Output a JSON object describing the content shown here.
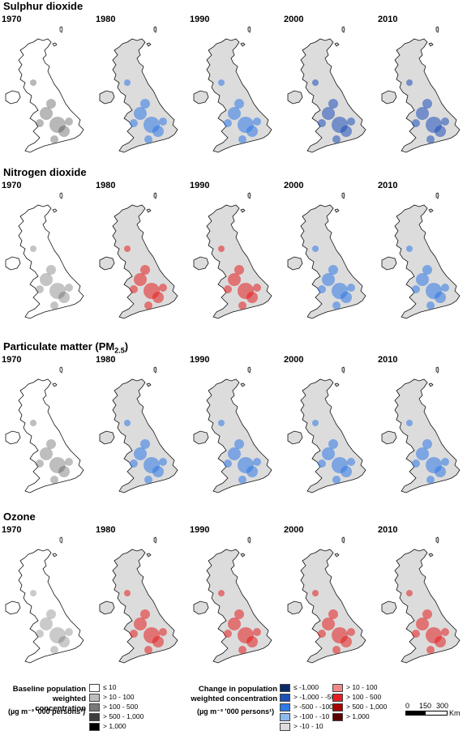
{
  "sections": [
    {
      "title": "Sulphur dioxide",
      "years": [
        "1970",
        "1980",
        "1990",
        "2000",
        "2010"
      ],
      "pollutant": "so2"
    },
    {
      "title": "Nitrogen dioxide",
      "years": [
        "1970",
        "1980",
        "1990",
        "2000",
        "2010"
      ],
      "pollutant": "no2"
    },
    {
      "title_prefix": "Particulate matter (PM",
      "title_sub": "2.5",
      "title_suffix": ")",
      "years": [
        "1970",
        "1980",
        "1990",
        "2000",
        "2010"
      ],
      "pollutant": "pm25"
    },
    {
      "title": "Ozone",
      "years": [
        "1970",
        "1980",
        "1990",
        "2000",
        "2010"
      ],
      "pollutant": "o3"
    }
  ],
  "legend_baseline": {
    "title": "Baseline population weighted concentration",
    "unit": "(µg m⁻³ '000 persons¹)",
    "items": [
      {
        "label": "≤ 10",
        "color": "#ffffff"
      },
      {
        "label": "> 10 - 100",
        "color": "#bdbdbd"
      },
      {
        "label": "> 100 - 500",
        "color": "#7a7a7a"
      },
      {
        "label": "> 500 - 1,000",
        "color": "#3d3d3d"
      },
      {
        "label": "> 1,000",
        "color": "#000000"
      }
    ]
  },
  "legend_change": {
    "title": "Change in population weighted concentration",
    "unit": "(µg m⁻³ '000 persons¹)",
    "negative_items": [
      {
        "label": "≤ -1,000",
        "color": "#0b2a6b"
      },
      {
        "label": "> -1,000 - -500",
        "color": "#1d4fb8"
      },
      {
        "label": "> -500 - -100",
        "color": "#2f79e6"
      },
      {
        "label": "> -100 - -10",
        "color": "#8db9ef"
      },
      {
        "label": "> -10 - 10",
        "color": "#dcdcdc"
      }
    ],
    "positive_items": [
      {
        "label": "> 10 - 100",
        "color": "#f08a8a"
      },
      {
        "label": "> 100 - 500",
        "color": "#e41f1f"
      },
      {
        "label": "> 500 - 1,000",
        "color": "#a80000"
      },
      {
        "label": "> 1,000",
        "color": "#5c0000"
      }
    ]
  },
  "scale_bar": {
    "ticks": [
      "0",
      "150",
      "300"
    ],
    "unit": "Km"
  }
}
